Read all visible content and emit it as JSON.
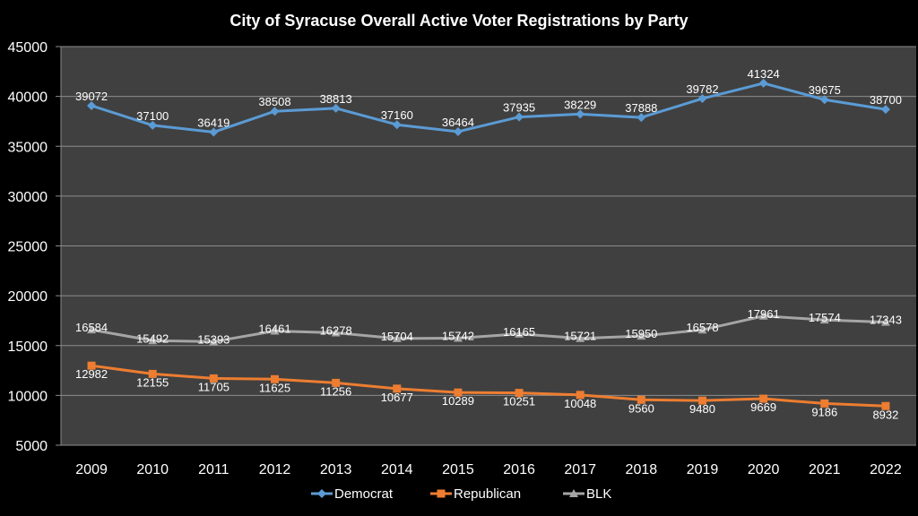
{
  "chart_data": {
    "type": "line",
    "title": "City of Syracuse Overall Active Voter Registrations by Party",
    "xlabel": "",
    "ylabel": "",
    "categories": [
      "2009",
      "2010",
      "2011",
      "2012",
      "2013",
      "2014",
      "2015",
      "2016",
      "2017",
      "2018",
      "2019",
      "2020",
      "2021",
      "2022"
    ],
    "ylim": [
      5000,
      45000
    ],
    "yticks": [
      5000,
      10000,
      15000,
      20000,
      25000,
      30000,
      35000,
      40000,
      45000
    ],
    "grid": true,
    "legend_position": "bottom",
    "series": [
      {
        "name": "Democrat",
        "color": "#5b9bd5",
        "marker": "diamond",
        "values": [
          39072,
          37100,
          36419,
          38508,
          38813,
          37160,
          36464,
          37935,
          38229,
          37888,
          39782,
          41324,
          39675,
          38700
        ]
      },
      {
        "name": "Republican",
        "color": "#ed7d31",
        "marker": "square",
        "values": [
          12982,
          12155,
          11705,
          11625,
          11256,
          10677,
          10289,
          10251,
          10048,
          9560,
          9480,
          9669,
          9186,
          8932
        ]
      },
      {
        "name": "BLK",
        "color": "#a5a5a5",
        "marker": "triangle",
        "values": [
          16584,
          15492,
          15393,
          16461,
          16278,
          15704,
          15742,
          16165,
          15721,
          15950,
          16578,
          17961,
          17574,
          17343
        ]
      }
    ]
  }
}
